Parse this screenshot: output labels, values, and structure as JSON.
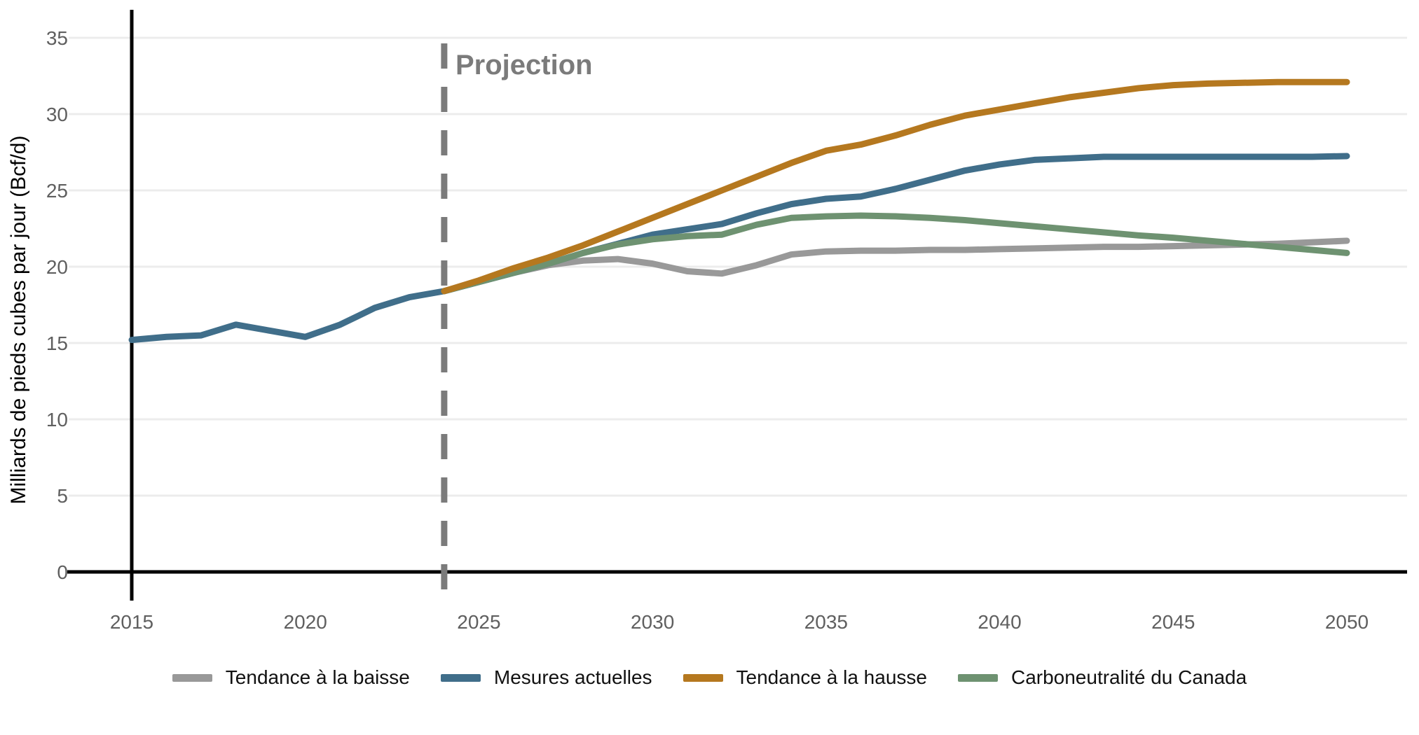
{
  "chart_data": {
    "type": "line",
    "title": "",
    "xlabel": "",
    "ylabel": "Milliards de pieds cubes par jour (Bcf/d)",
    "x_ticks": [
      "2015",
      "2020",
      "2025",
      "2030",
      "2035",
      "2040",
      "2045",
      "2050"
    ],
    "y_ticks": [
      "0",
      "5",
      "10",
      "15",
      "20",
      "25",
      "30",
      "35"
    ],
    "xlim": [
      2015,
      2050
    ],
    "ylim": [
      0,
      35
    ],
    "grid": "horizontal",
    "legend_position": "bottom",
    "annotation": {
      "label": "Projection",
      "x": 2024
    },
    "projection_start_year": 2024,
    "series": [
      {
        "name": "Tendance à la baisse",
        "color": "#999999",
        "start_year": 2024,
        "values": [
          18.4,
          19.0,
          19.6,
          20.1,
          20.4,
          20.5,
          20.2,
          19.7,
          19.55,
          20.1,
          20.8,
          21.0,
          21.05,
          21.05,
          21.1,
          21.1,
          21.15,
          21.2,
          21.25,
          21.3,
          21.3,
          21.35,
          21.4,
          21.45,
          21.5,
          21.6,
          21.7
        ]
      },
      {
        "name": "Mesures actuelles",
        "color": "#406e8a",
        "start_year": 2015,
        "values": [
          15.2,
          15.4,
          15.5,
          16.2,
          15.8,
          15.4,
          16.2,
          17.3,
          18.0,
          18.4,
          19.0,
          19.6,
          20.2,
          20.9,
          21.5,
          22.1,
          22.45,
          22.8,
          23.5,
          24.1,
          24.45,
          24.6,
          25.1,
          25.7,
          26.3,
          26.7,
          27.0,
          27.1,
          27.2,
          27.2,
          27.2,
          27.2,
          27.2,
          27.2,
          27.2,
          27.25
        ]
      },
      {
        "name": "Tendance à la hausse",
        "color": "#b5781f",
        "start_year": 2024,
        "values": [
          18.4,
          19.1,
          19.9,
          20.6,
          21.4,
          22.3,
          23.2,
          24.1,
          25.0,
          25.9,
          26.8,
          27.6,
          28.0,
          28.6,
          29.3,
          29.9,
          30.3,
          30.7,
          31.1,
          31.4,
          31.7,
          31.9,
          32.0,
          32.05,
          32.1,
          32.1,
          32.1
        ]
      },
      {
        "name": "Carboneutralité du Canada",
        "color": "#6e9271",
        "start_year": 2024,
        "values": [
          18.4,
          19.0,
          19.6,
          20.2,
          20.9,
          21.45,
          21.8,
          22.0,
          22.1,
          22.75,
          23.2,
          23.3,
          23.35,
          23.3,
          23.2,
          23.05,
          22.85,
          22.65,
          22.45,
          22.25,
          22.05,
          21.9,
          21.7,
          21.5,
          21.3,
          21.1,
          20.9
        ]
      }
    ],
    "colors": {
      "grid": "#ececec",
      "axis": "#000000",
      "tick_label": "#5f5f5f",
      "projection": "#7b7b7b",
      "background": "#ffffff"
    }
  }
}
